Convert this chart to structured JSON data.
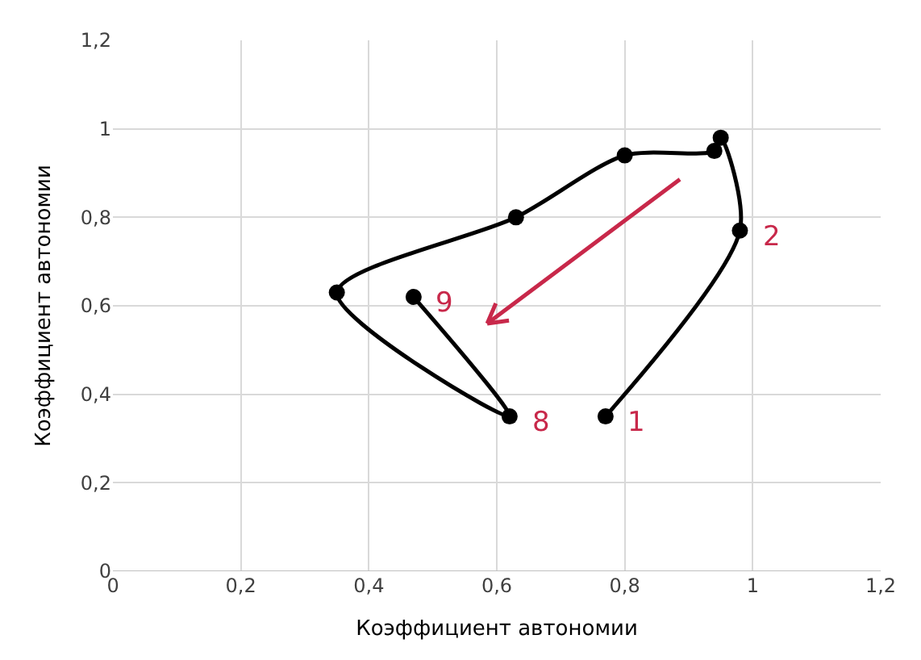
{
  "chart_data": {
    "type": "line",
    "xlabel": "Коэффициент автономии",
    "ylabel": "Коэффициент автономии",
    "x": [
      0.77,
      0.98,
      0.95,
      0.94,
      0.8,
      0.63,
      0.35,
      0.62,
      0.47
    ],
    "series": [
      {
        "color": "#000000",
        "values": [
          0.35,
          0.77,
          0.98,
          0.95,
          0.94,
          0.8,
          0.63,
          0.35,
          0.62
        ]
      }
    ],
    "xlim": [
      0,
      1.2
    ],
    "ylim": [
      0,
      1.2
    ],
    "xticks": [
      0,
      {
        "value": 0.2,
        "label": "0,2"
      },
      {
        "value": 0.4,
        "label": "0,4"
      },
      {
        "value": 0.6,
        "label": "0,6"
      },
      {
        "value": 0.8,
        "label": "0,8"
      },
      1,
      {
        "value": 1.2,
        "label": "1,2"
      }
    ],
    "yticks": [
      0,
      {
        "value": 0.2,
        "label": "0,2"
      },
      {
        "value": 0.4,
        "label": "0,4"
      },
      {
        "value": 0.6,
        "label": "0,6"
      },
      {
        "value": 0.8,
        "label": "0,8"
      },
      1,
      {
        "value": 1.2,
        "label": "1,2"
      }
    ],
    "annotations": [
      {
        "text": "1",
        "x": 0.77,
        "y": 0.35
      },
      {
        "text": "2",
        "x": 0.98,
        "y": 0.77
      },
      {
        "text": "8",
        "x": 0.62,
        "y": 0.35
      },
      {
        "text": "9",
        "x": 0.47,
        "y": 0.62
      }
    ],
    "grid": true,
    "legend": false,
    "marker": "circle",
    "line_style": "solid"
  }
}
